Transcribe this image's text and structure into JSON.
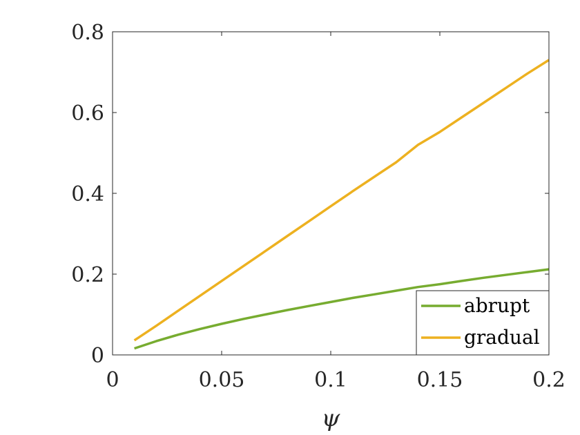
{
  "chart_data": {
    "type": "line",
    "title": "",
    "xlabel": "ψ",
    "ylabel": "",
    "xlim": [
      0,
      0.2
    ],
    "ylim": [
      0,
      0.8
    ],
    "xticks": [
      0,
      0.05,
      0.1,
      0.15,
      0.2
    ],
    "xtick_labels": [
      "0",
      "0.05",
      "0.1",
      "0.15",
      "0.2"
    ],
    "yticks": [
      0,
      0.2,
      0.4,
      0.6,
      0.8
    ],
    "ytick_labels": [
      "0",
      "0.2",
      "0.4",
      "0.6",
      "0.8"
    ],
    "grid": false,
    "legend_position": "bottom-right",
    "series": [
      {
        "name": "abrupt",
        "color": "#77ac30",
        "x": [
          0.01,
          0.02,
          0.03,
          0.04,
          0.05,
          0.06,
          0.07,
          0.08,
          0.09,
          0.1,
          0.11,
          0.12,
          0.13,
          0.14,
          0.15,
          0.16,
          0.17,
          0.18,
          0.19,
          0.2
        ],
        "y": [
          0.016,
          0.034,
          0.05,
          0.064,
          0.077,
          0.089,
          0.1,
          0.111,
          0.121,
          0.131,
          0.141,
          0.15,
          0.159,
          0.168,
          0.175,
          0.183,
          0.191,
          0.198,
          0.205,
          0.212
        ]
      },
      {
        "name": "gradual",
        "color": "#edb120",
        "x": [
          0.01,
          0.02,
          0.03,
          0.04,
          0.05,
          0.06,
          0.07,
          0.08,
          0.09,
          0.1,
          0.11,
          0.12,
          0.13,
          0.14,
          0.15,
          0.16,
          0.17,
          0.18,
          0.19,
          0.2
        ],
        "y": [
          0.036,
          0.072,
          0.109,
          0.146,
          0.183,
          0.22,
          0.257,
          0.294,
          0.331,
          0.368,
          0.405,
          0.441,
          0.477,
          0.52,
          0.552,
          0.588,
          0.624,
          0.66,
          0.696,
          0.73
        ]
      }
    ]
  }
}
